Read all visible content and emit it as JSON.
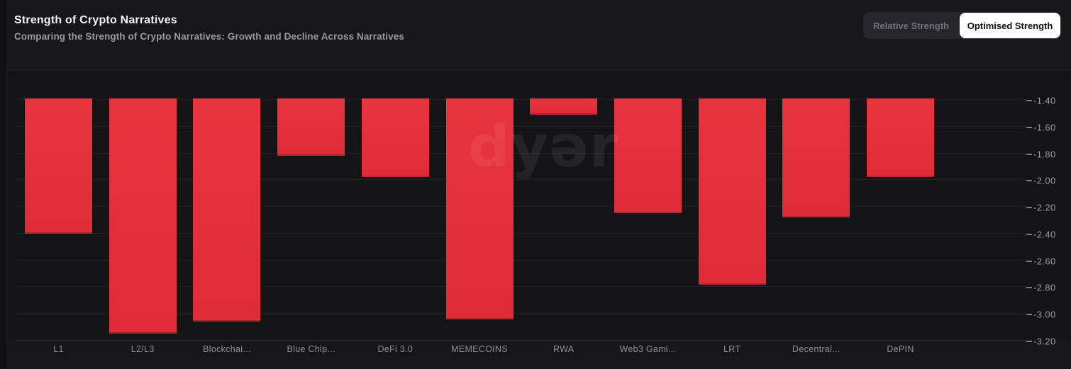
{
  "header": {
    "title": "Strength of Crypto Narratives",
    "subtitle": "Comparing the Strength of Crypto Narratives: Growth and Decline Across Narratives"
  },
  "toggle": {
    "options": [
      {
        "label": "Relative Strength",
        "active": false
      },
      {
        "label": "Optimised Strength",
        "active": true
      }
    ]
  },
  "watermark": {
    "text": "dyər"
  },
  "chart_data": {
    "type": "bar",
    "title": "Strength of Crypto Narratives",
    "subtitle": "Comparing the Strength of Crypto Narratives: Growth and Decline Across Narratives",
    "categories": [
      "L1",
      "L2/L3",
      "Blockchai...",
      "Blue Chip...",
      "DeFi 3.0",
      "MEMECOINS",
      "RWA",
      "Web3 Gami...",
      "LRT",
      "Decentral...",
      "DePIN"
    ],
    "values": [
      -2.41,
      -3.16,
      -3.07,
      -1.83,
      -1.99,
      -3.05,
      -1.52,
      -2.26,
      -2.79,
      -2.29,
      -1.99
    ],
    "bar_color": "#e5313d",
    "background_color": "#141417",
    "xlabel": "",
    "ylabel": "",
    "ylim": [
      -3.2,
      -1.4
    ],
    "baseline": -1.4,
    "y_ticks": [
      "-1.40",
      "-1.60",
      "-1.80",
      "-2.00",
      "-2.20",
      "-2.40",
      "-2.60",
      "-2.80",
      "-3.00",
      "-3.20"
    ],
    "grid": true,
    "legend": false,
    "y_axis_position": "right"
  }
}
